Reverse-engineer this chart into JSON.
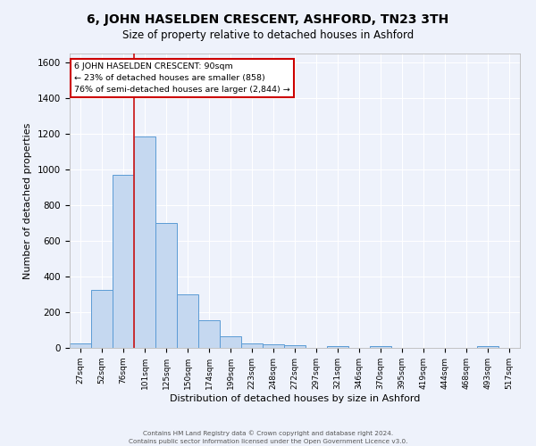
{
  "title": "6, JOHN HASELDEN CRESCENT, ASHFORD, TN23 3TH",
  "subtitle": "Size of property relative to detached houses in Ashford",
  "xlabel": "Distribution of detached houses by size in Ashford",
  "ylabel": "Number of detached properties",
  "bar_labels": [
    "27sqm",
    "52sqm",
    "76sqm",
    "101sqm",
    "125sqm",
    "150sqm",
    "174sqm",
    "199sqm",
    "223sqm",
    "248sqm",
    "272sqm",
    "297sqm",
    "321sqm",
    "346sqm",
    "370sqm",
    "395sqm",
    "419sqm",
    "444sqm",
    "468sqm",
    "493sqm",
    "517sqm"
  ],
  "bar_values": [
    25,
    325,
    970,
    1185,
    700,
    300,
    155,
    65,
    27,
    20,
    13,
    0,
    10,
    0,
    10,
    0,
    0,
    0,
    0,
    10,
    0
  ],
  "bar_color": "#c5d8f0",
  "bar_edge_color": "#5b9bd5",
  "ylim": [
    0,
    1650
  ],
  "yticks": [
    0,
    200,
    400,
    600,
    800,
    1000,
    1200,
    1400,
    1600
  ],
  "red_line_x": 2.5,
  "annotation_line1": "6 JOHN HASELDEN CRESCENT: 90sqm",
  "annotation_line2": "← 23% of detached houses are smaller (858)",
  "annotation_line3": "76% of semi-detached houses are larger (2,844) →",
  "annotation_box_color": "#ffffff",
  "annotation_box_edge_color": "#cc0000",
  "red_line_color": "#cc2222",
  "background_color": "#eef2fb",
  "grid_color": "#ffffff",
  "title_fontsize": 10,
  "subtitle_fontsize": 9,
  "footer1": "Contains HM Land Registry data © Crown copyright and database right 2024.",
  "footer2": "Contains public sector information licensed under the Open Government Licence v3.0."
}
